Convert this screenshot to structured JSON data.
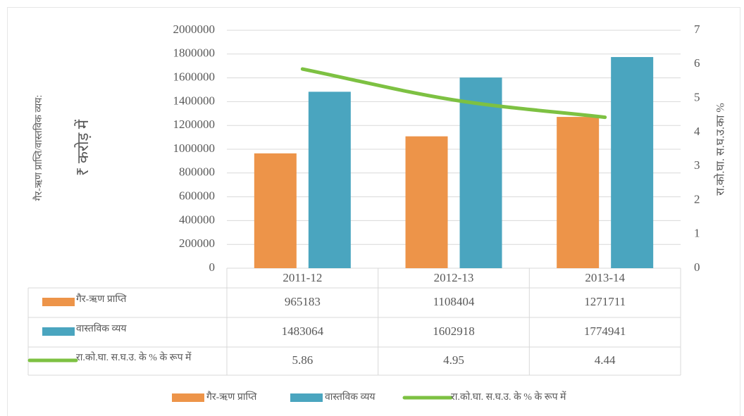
{
  "chart_data": {
    "type": "bar",
    "ylabel": [
      "गैर-ऋण प्राप्ति/वास्तविक व्यय:",
      "₹ करोड़ में"
    ],
    "y2label": "रा.को.घा. स.घ.उ.का %",
    "categories": [
      "2011-12",
      "2012-13",
      "2013-14"
    ],
    "series": [
      {
        "name": "गैर-ऋण प्राप्ति",
        "color": "#ed9449",
        "type": "bar",
        "values": [
          965183,
          1108404,
          1271711
        ]
      },
      {
        "name": "वास्तविक व्यय",
        "color": "#4aa5bf",
        "type": "bar",
        "values": [
          1483064,
          1602918,
          1774941
        ]
      },
      {
        "name": "रा.को.घा. स.घ.उ. के % के रूप में",
        "color": "#7dc142",
        "type": "line",
        "axis": "y2",
        "values": [
          5.86,
          4.95,
          4.44
        ]
      }
    ],
    "ylim": [
      0,
      2000000
    ],
    "yticks": [
      0,
      200000,
      400000,
      600000,
      800000,
      1000000,
      1200000,
      1400000,
      1600000,
      1800000,
      2000000
    ],
    "y2lim": [
      0,
      7
    ],
    "y2ticks": [
      0,
      1,
      2,
      3,
      4,
      5,
      6,
      7
    ],
    "grid": true,
    "legend": "bottom"
  }
}
